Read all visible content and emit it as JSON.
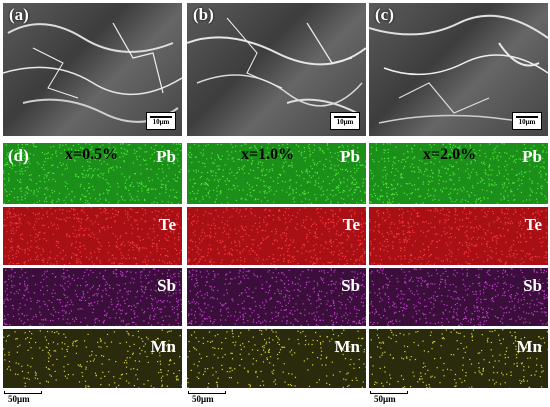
{
  "sem_panels": [
    {
      "label": "(a)",
      "scale": "10μm"
    },
    {
      "label": "(b)",
      "scale": "10μm"
    },
    {
      "label": "(c)",
      "scale": "10μm"
    }
  ],
  "eds_label": "(d)",
  "compositions": [
    "x=0.5%",
    "x=1.0%",
    "x=2.0%"
  ],
  "elements": [
    {
      "symbol": "Pb",
      "color": "#1f9a1c",
      "text_color": "#ffffff"
    },
    {
      "symbol": "Te",
      "color": "#c8171b",
      "text_color": "#ffffff"
    },
    {
      "symbol": "Sb",
      "color": "#5c1b5a",
      "text_color": "#ffffff"
    },
    {
      "symbol": "Mn",
      "color": "#3a3a10",
      "text_color": "#ffffff"
    }
  ],
  "eds_scale": "50μm"
}
